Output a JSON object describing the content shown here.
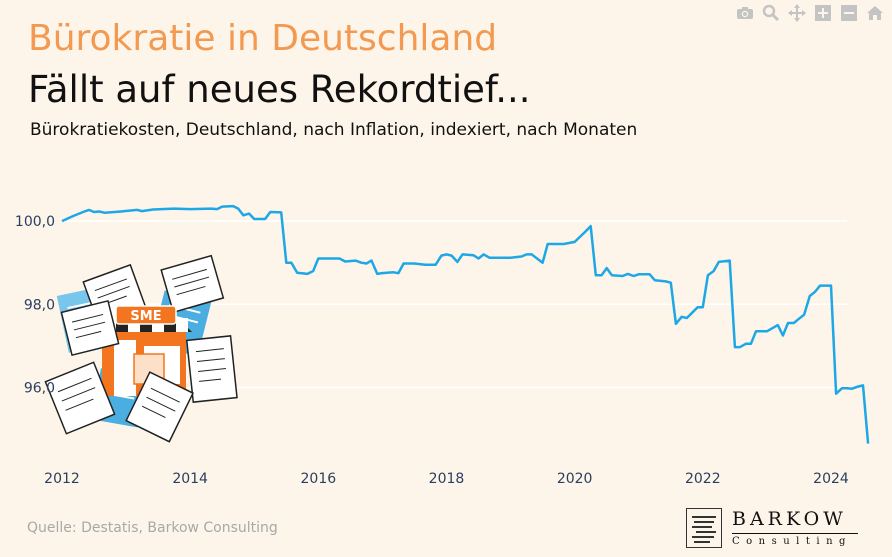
{
  "header": {
    "title": "Bürokratie in Deutschland",
    "subtitle": "Fällt auf neues Rekordtief...",
    "description": "Bürokratiekosten, Deutschland, nach Inflation, indexiert, nach Monaten"
  },
  "footer": {
    "source": "Quelle: Destatis, Barkow Consulting"
  },
  "logo": {
    "name": "BARKOW",
    "tagline": "Consulting"
  },
  "illustration": {
    "sign_text": "SME"
  },
  "modebar": [
    "camera-icon",
    "zoom-icon",
    "pan-icon",
    "zoom-in-icon",
    "zoom-out-icon",
    "home-icon"
  ],
  "colors": {
    "line": "#1ea7e6",
    "title": "#f29a52",
    "background": "#fdf5ea"
  },
  "chart_data": {
    "type": "line",
    "x_ticks": [
      "2012",
      "2014",
      "2016",
      "2018",
      "2020",
      "2022",
      "2024"
    ],
    "y_ticks": [
      {
        "value": 96,
        "label": "96,0"
      },
      {
        "value": 98,
        "label": "98,0"
      },
      {
        "value": 100,
        "label": "100,0"
      }
    ],
    "xlim": [
      2012,
      2024.25
    ],
    "ylim": [
      94.4,
      100.7
    ],
    "grid": true,
    "series": [
      {
        "values": [
          [
            2012.0,
            100.0
          ],
          [
            2012.17,
            100.12
          ],
          [
            2012.33,
            100.22
          ],
          [
            2012.42,
            100.27
          ],
          [
            2012.5,
            100.22
          ],
          [
            2012.58,
            100.23
          ],
          [
            2012.67,
            100.2
          ],
          [
            2012.92,
            100.23
          ],
          [
            2013.17,
            100.27
          ],
          [
            2013.25,
            100.24
          ],
          [
            2013.42,
            100.28
          ],
          [
            2013.75,
            100.3
          ],
          [
            2014.0,
            100.29
          ],
          [
            2014.33,
            100.3
          ],
          [
            2014.42,
            100.29
          ],
          [
            2014.5,
            100.35
          ],
          [
            2014.67,
            100.36
          ],
          [
            2014.75,
            100.3
          ],
          [
            2014.83,
            100.14
          ],
          [
            2014.92,
            100.18
          ],
          [
            2015.0,
            100.05
          ],
          [
            2015.17,
            100.05
          ],
          [
            2015.25,
            100.22
          ],
          [
            2015.42,
            100.21
          ],
          [
            2015.5,
            99.0
          ],
          [
            2015.58,
            99.0
          ],
          [
            2015.67,
            98.76
          ],
          [
            2015.83,
            98.73
          ],
          [
            2015.92,
            98.8
          ],
          [
            2016.0,
            99.1
          ],
          [
            2016.17,
            99.1
          ],
          [
            2016.33,
            99.1
          ],
          [
            2016.42,
            99.03
          ],
          [
            2016.58,
            99.05
          ],
          [
            2016.67,
            99.0
          ],
          [
            2016.75,
            98.98
          ],
          [
            2016.83,
            99.05
          ],
          [
            2016.92,
            98.73
          ],
          [
            2017.0,
            98.75
          ],
          [
            2017.17,
            98.77
          ],
          [
            2017.25,
            98.75
          ],
          [
            2017.33,
            98.98
          ],
          [
            2017.5,
            98.98
          ],
          [
            2017.67,
            98.95
          ],
          [
            2017.83,
            98.95
          ],
          [
            2017.92,
            99.17
          ],
          [
            2018.0,
            99.2
          ],
          [
            2018.08,
            99.17
          ],
          [
            2018.17,
            99.02
          ],
          [
            2018.25,
            99.2
          ],
          [
            2018.42,
            99.18
          ],
          [
            2018.5,
            99.1
          ],
          [
            2018.58,
            99.2
          ],
          [
            2018.67,
            99.12
          ],
          [
            2018.75,
            99.12
          ],
          [
            2019.0,
            99.12
          ],
          [
            2019.17,
            99.15
          ],
          [
            2019.25,
            99.2
          ],
          [
            2019.33,
            99.2
          ],
          [
            2019.5,
            99.0
          ],
          [
            2019.58,
            99.45
          ],
          [
            2019.83,
            99.45
          ],
          [
            2020.0,
            99.5
          ],
          [
            2020.17,
            99.75
          ],
          [
            2020.25,
            99.88
          ],
          [
            2020.33,
            98.7
          ],
          [
            2020.42,
            98.7
          ],
          [
            2020.5,
            98.87
          ],
          [
            2020.58,
            98.7
          ],
          [
            2020.75,
            98.68
          ],
          [
            2020.83,
            98.73
          ],
          [
            2020.92,
            98.68
          ],
          [
            2021.0,
            98.72
          ],
          [
            2021.17,
            98.72
          ],
          [
            2021.25,
            98.58
          ],
          [
            2021.42,
            98.55
          ],
          [
            2021.5,
            98.52
          ],
          [
            2021.58,
            97.53
          ],
          [
            2021.67,
            97.7
          ],
          [
            2021.75,
            97.67
          ],
          [
            2021.92,
            97.93
          ],
          [
            2022.0,
            97.93
          ],
          [
            2022.08,
            98.7
          ],
          [
            2022.17,
            98.8
          ],
          [
            2022.25,
            99.02
          ],
          [
            2022.42,
            99.05
          ],
          [
            2022.5,
            96.97
          ],
          [
            2022.58,
            96.97
          ],
          [
            2022.67,
            97.05
          ],
          [
            2022.75,
            97.05
          ],
          [
            2022.83,
            97.35
          ],
          [
            2023.0,
            97.35
          ],
          [
            2023.17,
            97.5
          ],
          [
            2023.25,
            97.25
          ],
          [
            2023.33,
            97.55
          ],
          [
            2023.42,
            97.55
          ],
          [
            2023.5,
            97.65
          ],
          [
            2023.58,
            97.75
          ],
          [
            2023.67,
            98.2
          ],
          [
            2023.75,
            98.3
          ],
          [
            2023.83,
            98.45
          ],
          [
            2023.92,
            98.45
          ],
          [
            2024.0,
            98.45
          ],
          [
            2024.08,
            95.85
          ],
          [
            2024.17,
            95.98
          ],
          [
            2024.25,
            95.98
          ],
          [
            2024.33,
            95.97
          ],
          [
            2024.42,
            96.02
          ],
          [
            2024.5,
            96.05
          ],
          [
            2024.58,
            94.65
          ]
        ]
      }
    ]
  }
}
